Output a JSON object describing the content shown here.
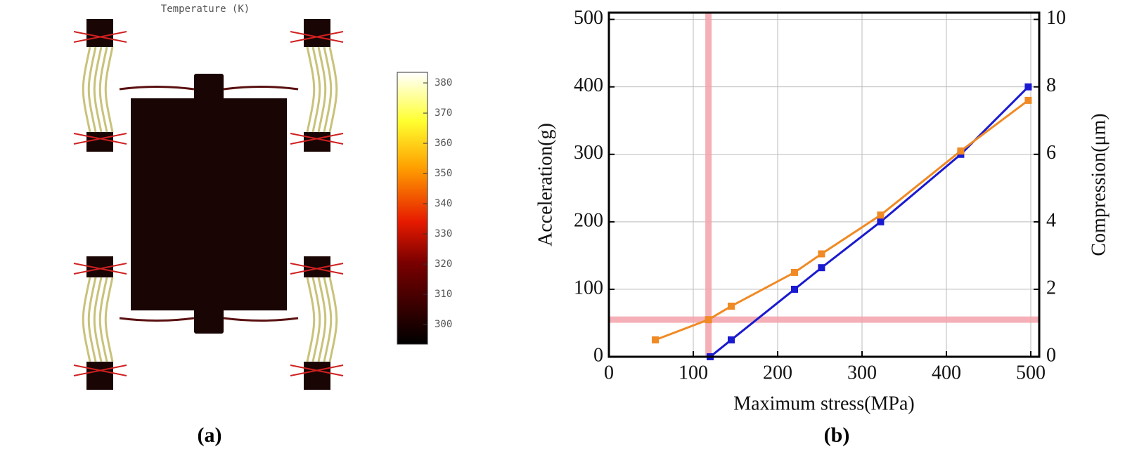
{
  "panel_a": {
    "title": "Temperature (K)",
    "caption": "(a)",
    "colorbar": {
      "lim": [
        293.5,
        383.5
      ],
      "ticks": [
        300,
        310,
        320,
        330,
        340,
        350,
        360,
        370,
        380
      ]
    }
  },
  "chart_data": {
    "type": "line",
    "caption": "(b)",
    "xlabel": "Maximum stress(MPa)",
    "ylabel": "Acceleration(g)",
    "y2label": "Compression(μm)",
    "xlim": [
      0,
      510
    ],
    "xticks": [
      0,
      100,
      200,
      300,
      400,
      500
    ],
    "ylim": [
      0,
      510
    ],
    "yticks": [
      0,
      100,
      200,
      300,
      400,
      500
    ],
    "y2lim": [
      0,
      10.2
    ],
    "y2ticks": [
      0,
      2,
      4,
      6,
      8,
      10
    ],
    "grid": true,
    "reference_lines": {
      "x": 118,
      "y": 55,
      "color": "#f4a3ab"
    },
    "series": [
      {
        "color": "#1a1ad0",
        "x": [
          120,
          145,
          220,
          252,
          322,
          417,
          497
        ],
        "values": [
          0,
          25,
          100,
          132,
          200,
          300,
          400
        ]
      },
      {
        "color": "#f08a24",
        "axis": "y2",
        "x": [
          55,
          118,
          145,
          220,
          252,
          322,
          417,
          497
        ],
        "values": [
          0.5,
          1.1,
          1.5,
          2.5,
          3.05,
          4.2,
          6.1,
          7.6
        ]
      }
    ]
  }
}
